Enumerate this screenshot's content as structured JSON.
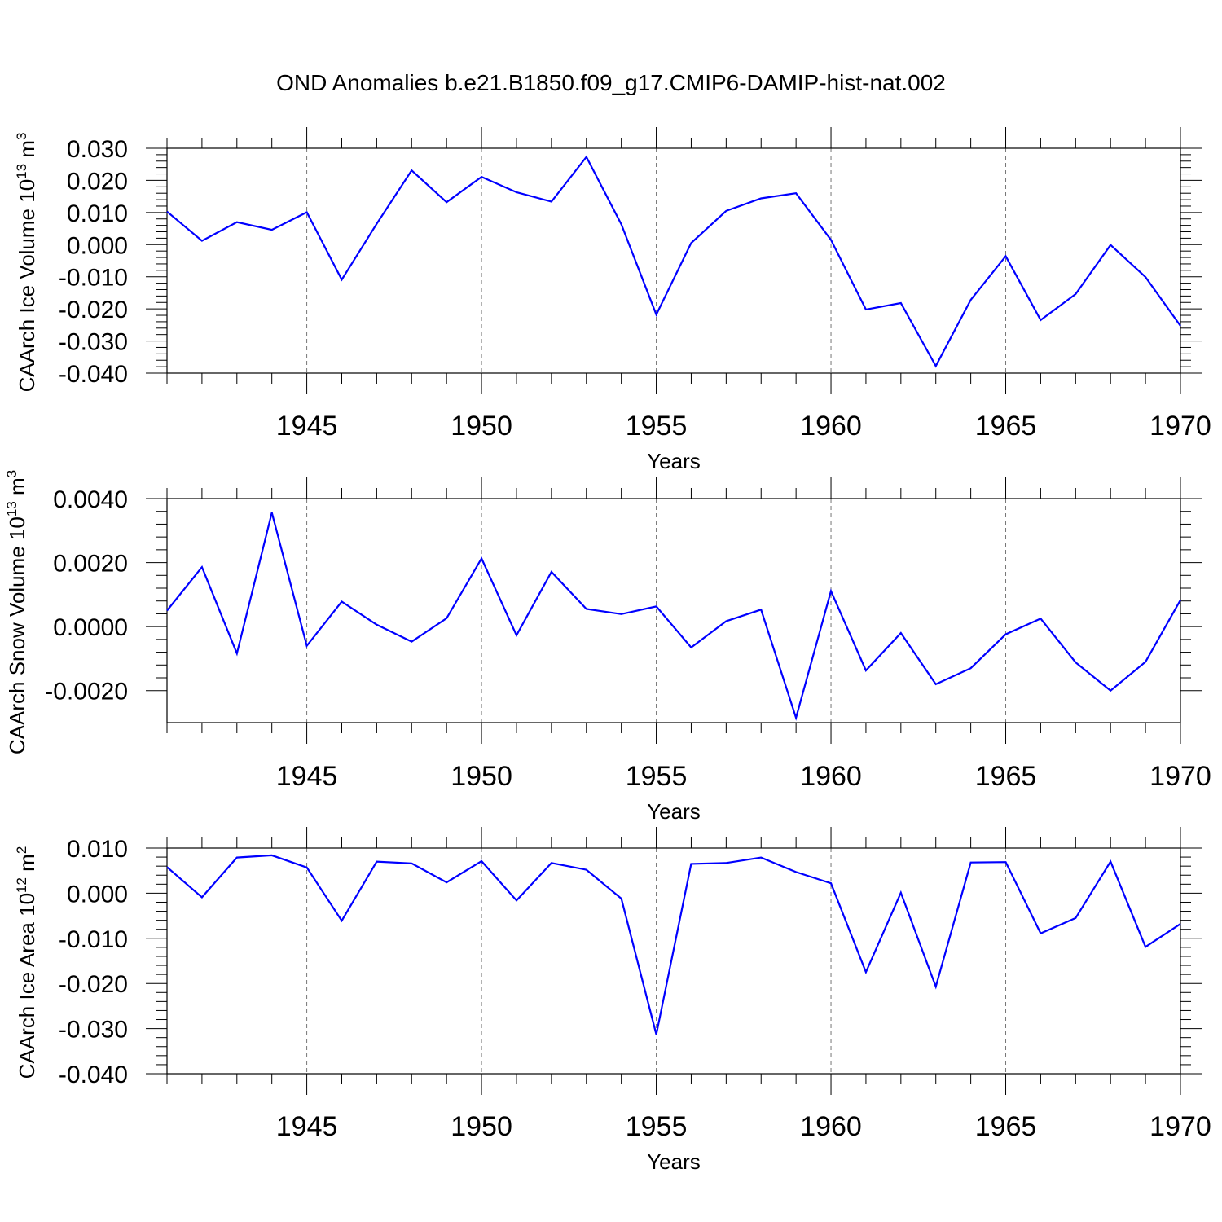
{
  "figure": {
    "title": "OND Anomalies b.e21.B1850.f09_g17.CMIP6-DAMIP-hist-nat.002",
    "line_color": "#0000ff"
  },
  "chart_data": [
    {
      "type": "line",
      "ylabel": "CAArch Ice Volume 10",
      "ylabel_exp": "13",
      "ylabel_unit": "m",
      "ylabel_unit_exp": "3",
      "xlabel": "Years",
      "xlim": [
        1941,
        1970
      ],
      "ylim": [
        -0.04,
        0.03
      ],
      "yticks": [
        0.03,
        0.02,
        0.01,
        0.0,
        -0.01,
        -0.02,
        -0.03,
        -0.04
      ],
      "ytick_labels": [
        "0.030",
        "0.020",
        "0.010",
        "0.000",
        "-0.010",
        "-0.020",
        "-0.030",
        "-0.040"
      ],
      "xticks": [
        1945,
        1950,
        1955,
        1960,
        1965,
        1970
      ],
      "xtick_labels": [
        "1945",
        "1950",
        "1955",
        "1960",
        "1965",
        "1970"
      ],
      "grid": "vertical dashed at major x ticks",
      "x": [
        1941,
        1942,
        1943,
        1944,
        1945,
        1946,
        1947,
        1948,
        1949,
        1950,
        1951,
        1952,
        1953,
        1954,
        1955,
        1956,
        1957,
        1958,
        1959,
        1960,
        1961,
        1962,
        1963,
        1964,
        1965,
        1966,
        1967,
        1968,
        1969,
        1970
      ],
      "series": [
        {
          "values": [
            0.0103,
            0.0012,
            0.007,
            0.0046,
            0.0101,
            -0.0109,
            0.0065,
            0.0231,
            0.0132,
            0.0211,
            0.0163,
            0.0134,
            0.0273,
            0.0063,
            -0.0218,
            0.0005,
            0.0105,
            0.0144,
            0.016,
            0.0015,
            -0.0202,
            -0.0182,
            -0.0378,
            -0.0172,
            -0.0036,
            -0.0235,
            -0.0154,
            -0.0001,
            -0.0101,
            -0.0253
          ]
        }
      ]
    },
    {
      "type": "line",
      "ylabel": "CAArch Snow Volume 10",
      "ylabel_exp": "13",
      "ylabel_unit": "m",
      "ylabel_unit_exp": "3",
      "xlabel": "Years",
      "xlim": [
        1941,
        1970
      ],
      "ylim": [
        -0.003,
        0.004
      ],
      "yticks": [
        0.004,
        0.002,
        0.0,
        -0.002
      ],
      "ytick_labels": [
        "0.0040",
        "0.0020",
        "0.0000",
        "-0.0020"
      ],
      "xticks": [
        1945,
        1950,
        1955,
        1960,
        1965,
        1970
      ],
      "xtick_labels": [
        "1945",
        "1950",
        "1955",
        "1960",
        "1965",
        "1970"
      ],
      "grid": "vertical dashed at major x ticks",
      "x": [
        1941,
        1942,
        1943,
        1944,
        1945,
        1946,
        1947,
        1948,
        1949,
        1950,
        1951,
        1952,
        1953,
        1954,
        1955,
        1956,
        1957,
        1958,
        1959,
        1960,
        1961,
        1962,
        1963,
        1964,
        1965,
        1966,
        1967,
        1968,
        1969,
        1970
      ],
      "series": [
        {
          "values": [
            0.0005,
            0.00186,
            -0.00084,
            0.00356,
            -0.0006,
            0.00078,
            6e-05,
            -0.00047,
            0.00026,
            0.00213,
            -0.00027,
            0.00171,
            0.00055,
            0.00039,
            0.00063,
            -0.00065,
            0.00017,
            0.00053,
            -0.00285,
            0.00111,
            -0.00137,
            -0.0002,
            -0.0018,
            -0.0013,
            -0.00024,
            0.00025,
            -0.00112,
            -0.002,
            -0.0011,
            0.00083
          ]
        }
      ]
    },
    {
      "type": "line",
      "ylabel": "CAArch Ice Area 10",
      "ylabel_exp": "12",
      "ylabel_unit": "m",
      "ylabel_unit_exp": "2",
      "xlabel": "Years",
      "xlim": [
        1941,
        1970
      ],
      "ylim": [
        -0.04,
        0.01
      ],
      "yticks": [
        0.01,
        0.0,
        -0.01,
        -0.02,
        -0.03,
        -0.04
      ],
      "ytick_labels": [
        "0.010",
        "0.000",
        "-0.010",
        "-0.020",
        "-0.030",
        "-0.040"
      ],
      "xticks": [
        1945,
        1950,
        1955,
        1960,
        1965,
        1970
      ],
      "xtick_labels": [
        "1945",
        "1950",
        "1955",
        "1960",
        "1965",
        "1970"
      ],
      "grid": "vertical dashed at major x ticks",
      "x": [
        1941,
        1942,
        1943,
        1944,
        1945,
        1946,
        1947,
        1948,
        1949,
        1950,
        1951,
        1952,
        1953,
        1954,
        1955,
        1956,
        1957,
        1958,
        1959,
        1960,
        1961,
        1962,
        1963,
        1964,
        1965,
        1966,
        1967,
        1968,
        1969,
        1970
      ],
      "series": [
        {
          "values": [
            0.0058,
            -0.0009,
            0.0079,
            0.0084,
            0.0057,
            -0.0061,
            0.007,
            0.0066,
            0.0024,
            0.0071,
            -0.0016,
            0.0067,
            0.0052,
            -0.0012,
            -0.0313,
            0.0065,
            0.0067,
            0.0079,
            0.0047,
            0.0022,
            -0.0175,
            0.0001,
            -0.0207,
            0.0068,
            0.0069,
            -0.0089,
            -0.0055,
            0.007,
            -0.0119,
            -0.0068
          ]
        }
      ]
    }
  ]
}
